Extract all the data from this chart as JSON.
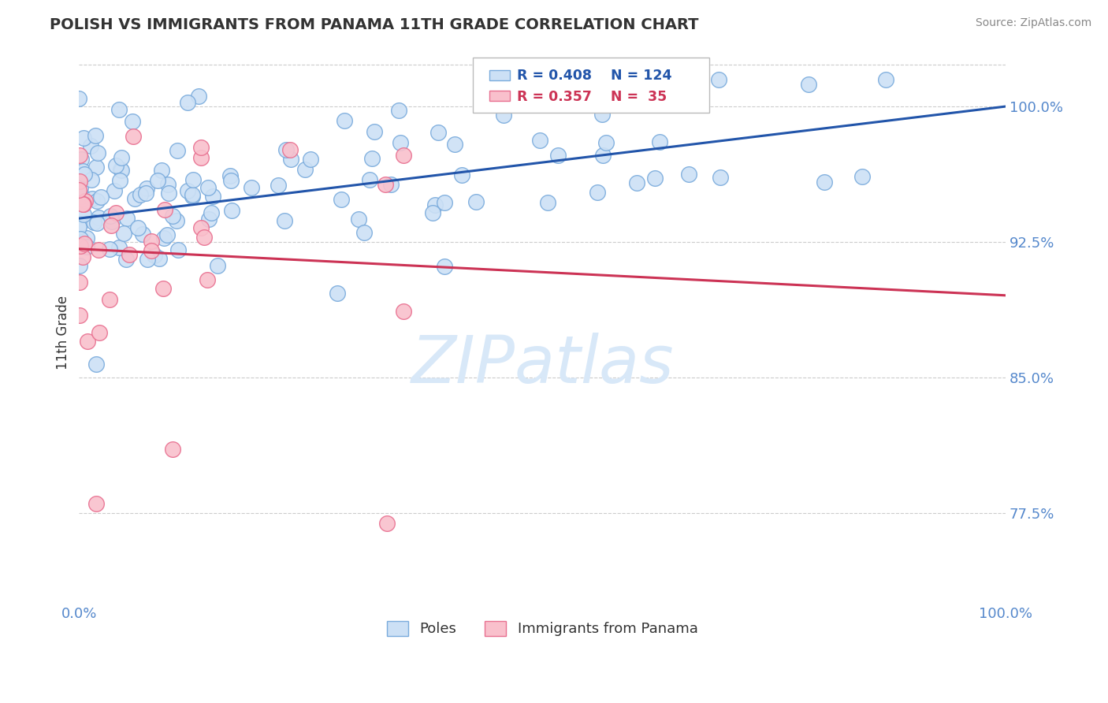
{
  "title": "POLISH VS IMMIGRANTS FROM PANAMA 11TH GRADE CORRELATION CHART",
  "source_text": "Source: ZipAtlas.com",
  "ylabel": "11th Grade",
  "xmin": 0.0,
  "xmax": 1.0,
  "ymin": 0.725,
  "ymax": 1.025,
  "yticks": [
    0.775,
    0.85,
    0.925,
    1.0
  ],
  "ytick_labels": [
    "77.5%",
    "85.0%",
    "92.5%",
    "100.0%"
  ],
  "xticks": [
    0.0,
    1.0
  ],
  "xtick_labels": [
    "0.0%",
    "100.0%"
  ],
  "r_blue": 0.408,
  "n_blue": 124,
  "r_pink": 0.357,
  "n_pink": 35,
  "blue_fill": "#cce0f5",
  "blue_edge": "#7aabdc",
  "pink_fill": "#f9c0cc",
  "pink_edge": "#e87090",
  "trend_blue": "#2255aa",
  "trend_pink": "#cc3355",
  "legend_blue_label": "Poles",
  "legend_pink_label": "Immigrants from Panama",
  "watermark": "ZIPatlas",
  "watermark_color": "#d8e8f8",
  "background_color": "#ffffff",
  "grid_color": "#cccccc",
  "title_color": "#333333",
  "ylabel_color": "#333333",
  "tick_color": "#5588cc",
  "marker_size": 200,
  "seed": 7
}
